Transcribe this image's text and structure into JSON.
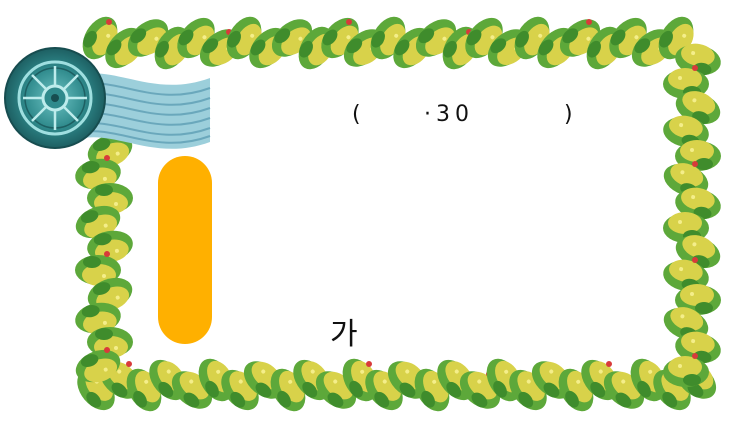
{
  "text": {
    "paren_left": "(",
    "date": "·30",
    "paren_right": ")",
    "bottom_char": "가"
  },
  "icons": {
    "wheel": "dharma-wheel-icon",
    "ribbon": "wave-ribbon",
    "border": "leaf-garland-border"
  },
  "colors": {
    "background": "#ffffff",
    "leaf_green": "#5da83a",
    "leaf_yellow": "#d8d24a",
    "berry_red": "#d83a3a",
    "wheel_teal": "#2f8a8c",
    "ribbon_blue": "#8fc4d4",
    "accent_orange": "#ffb000"
  }
}
